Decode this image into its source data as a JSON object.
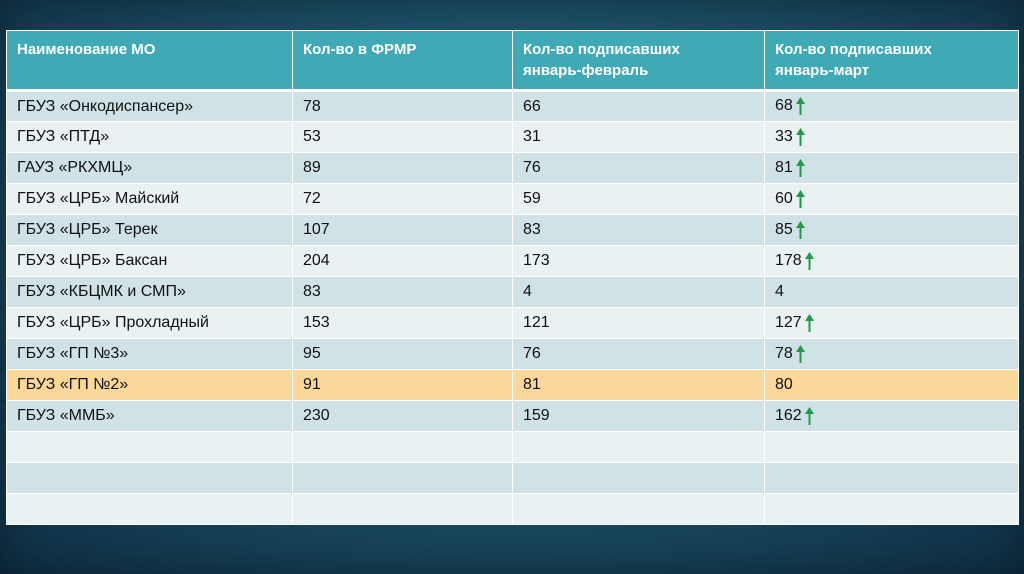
{
  "table": {
    "headers": [
      [
        "Наименование МО"
      ],
      [
        "Кол-во в ФРМР"
      ],
      [
        "Кол-во подписавших",
        "январь-февраль"
      ],
      [
        "Кол-во подписавших",
        "январь-март"
      ]
    ],
    "rows": [
      {
        "name": "ГБУЗ «Онкодиспансер»",
        "frmr": "78",
        "jan_feb": "66",
        "jan_mar": "68",
        "trend": "up"
      },
      {
        "name": "ГБУЗ «ПТД»",
        "frmr": "53",
        "jan_feb": "31",
        "jan_mar": "33",
        "trend": "up"
      },
      {
        "name": "ГАУЗ «РКХМЦ»",
        "frmr": "89",
        "jan_feb": "76",
        "jan_mar": "81",
        "trend": "up"
      },
      {
        "name": "ГБУЗ «ЦРБ» Майский",
        "frmr": "72",
        "jan_feb": "59",
        "jan_mar": "60",
        "trend": "up"
      },
      {
        "name": "ГБУЗ «ЦРБ» Терек",
        "frmr": "107",
        "jan_feb": "83",
        "jan_mar": "85",
        "trend": "up"
      },
      {
        "name": "ГБУЗ «ЦРБ» Баксан",
        "frmr": "204",
        "jan_feb": "173",
        "jan_mar": "178",
        "trend": "up"
      },
      {
        "name": "ГБУЗ «КБЦМК и СМП»",
        "frmr": "83",
        "jan_feb": "4",
        "jan_mar": "4",
        "trend": "none"
      },
      {
        "name": "ГБУЗ «ЦРБ» Прохладный",
        "frmr": "153",
        "jan_feb": "121",
        "jan_mar": "127",
        "trend": "up"
      },
      {
        "name": "ГБУЗ «ГП №3»",
        "frmr": "95",
        "jan_feb": "76",
        "jan_mar": "78",
        "trend": "up"
      },
      {
        "name": "ГБУЗ «ГП №2»",
        "frmr": "91",
        "jan_feb": "81",
        "jan_mar": "80",
        "trend": "none",
        "highlight": true
      },
      {
        "name": "ГБУЗ «ММБ»",
        "frmr": "230",
        "jan_feb": "159",
        "jan_mar": "162",
        "trend": "up"
      },
      {
        "name": "",
        "frmr": "",
        "jan_feb": "",
        "jan_mar": "",
        "trend": "none"
      },
      {
        "name": "",
        "frmr": "",
        "jan_feb": "",
        "jan_mar": "",
        "trend": "none"
      },
      {
        "name": "",
        "frmr": "",
        "jan_feb": "",
        "jan_mar": "",
        "trend": "none"
      }
    ]
  },
  "colors": {
    "header_bg": "#3fa9b5",
    "row_odd": "#d0e2e6",
    "row_even": "#e9f1f3",
    "row_highlight": "#fbd89a",
    "trend_arrow": "#1f9a48"
  },
  "icons": {
    "trend_up": "arrow-up-icon"
  }
}
